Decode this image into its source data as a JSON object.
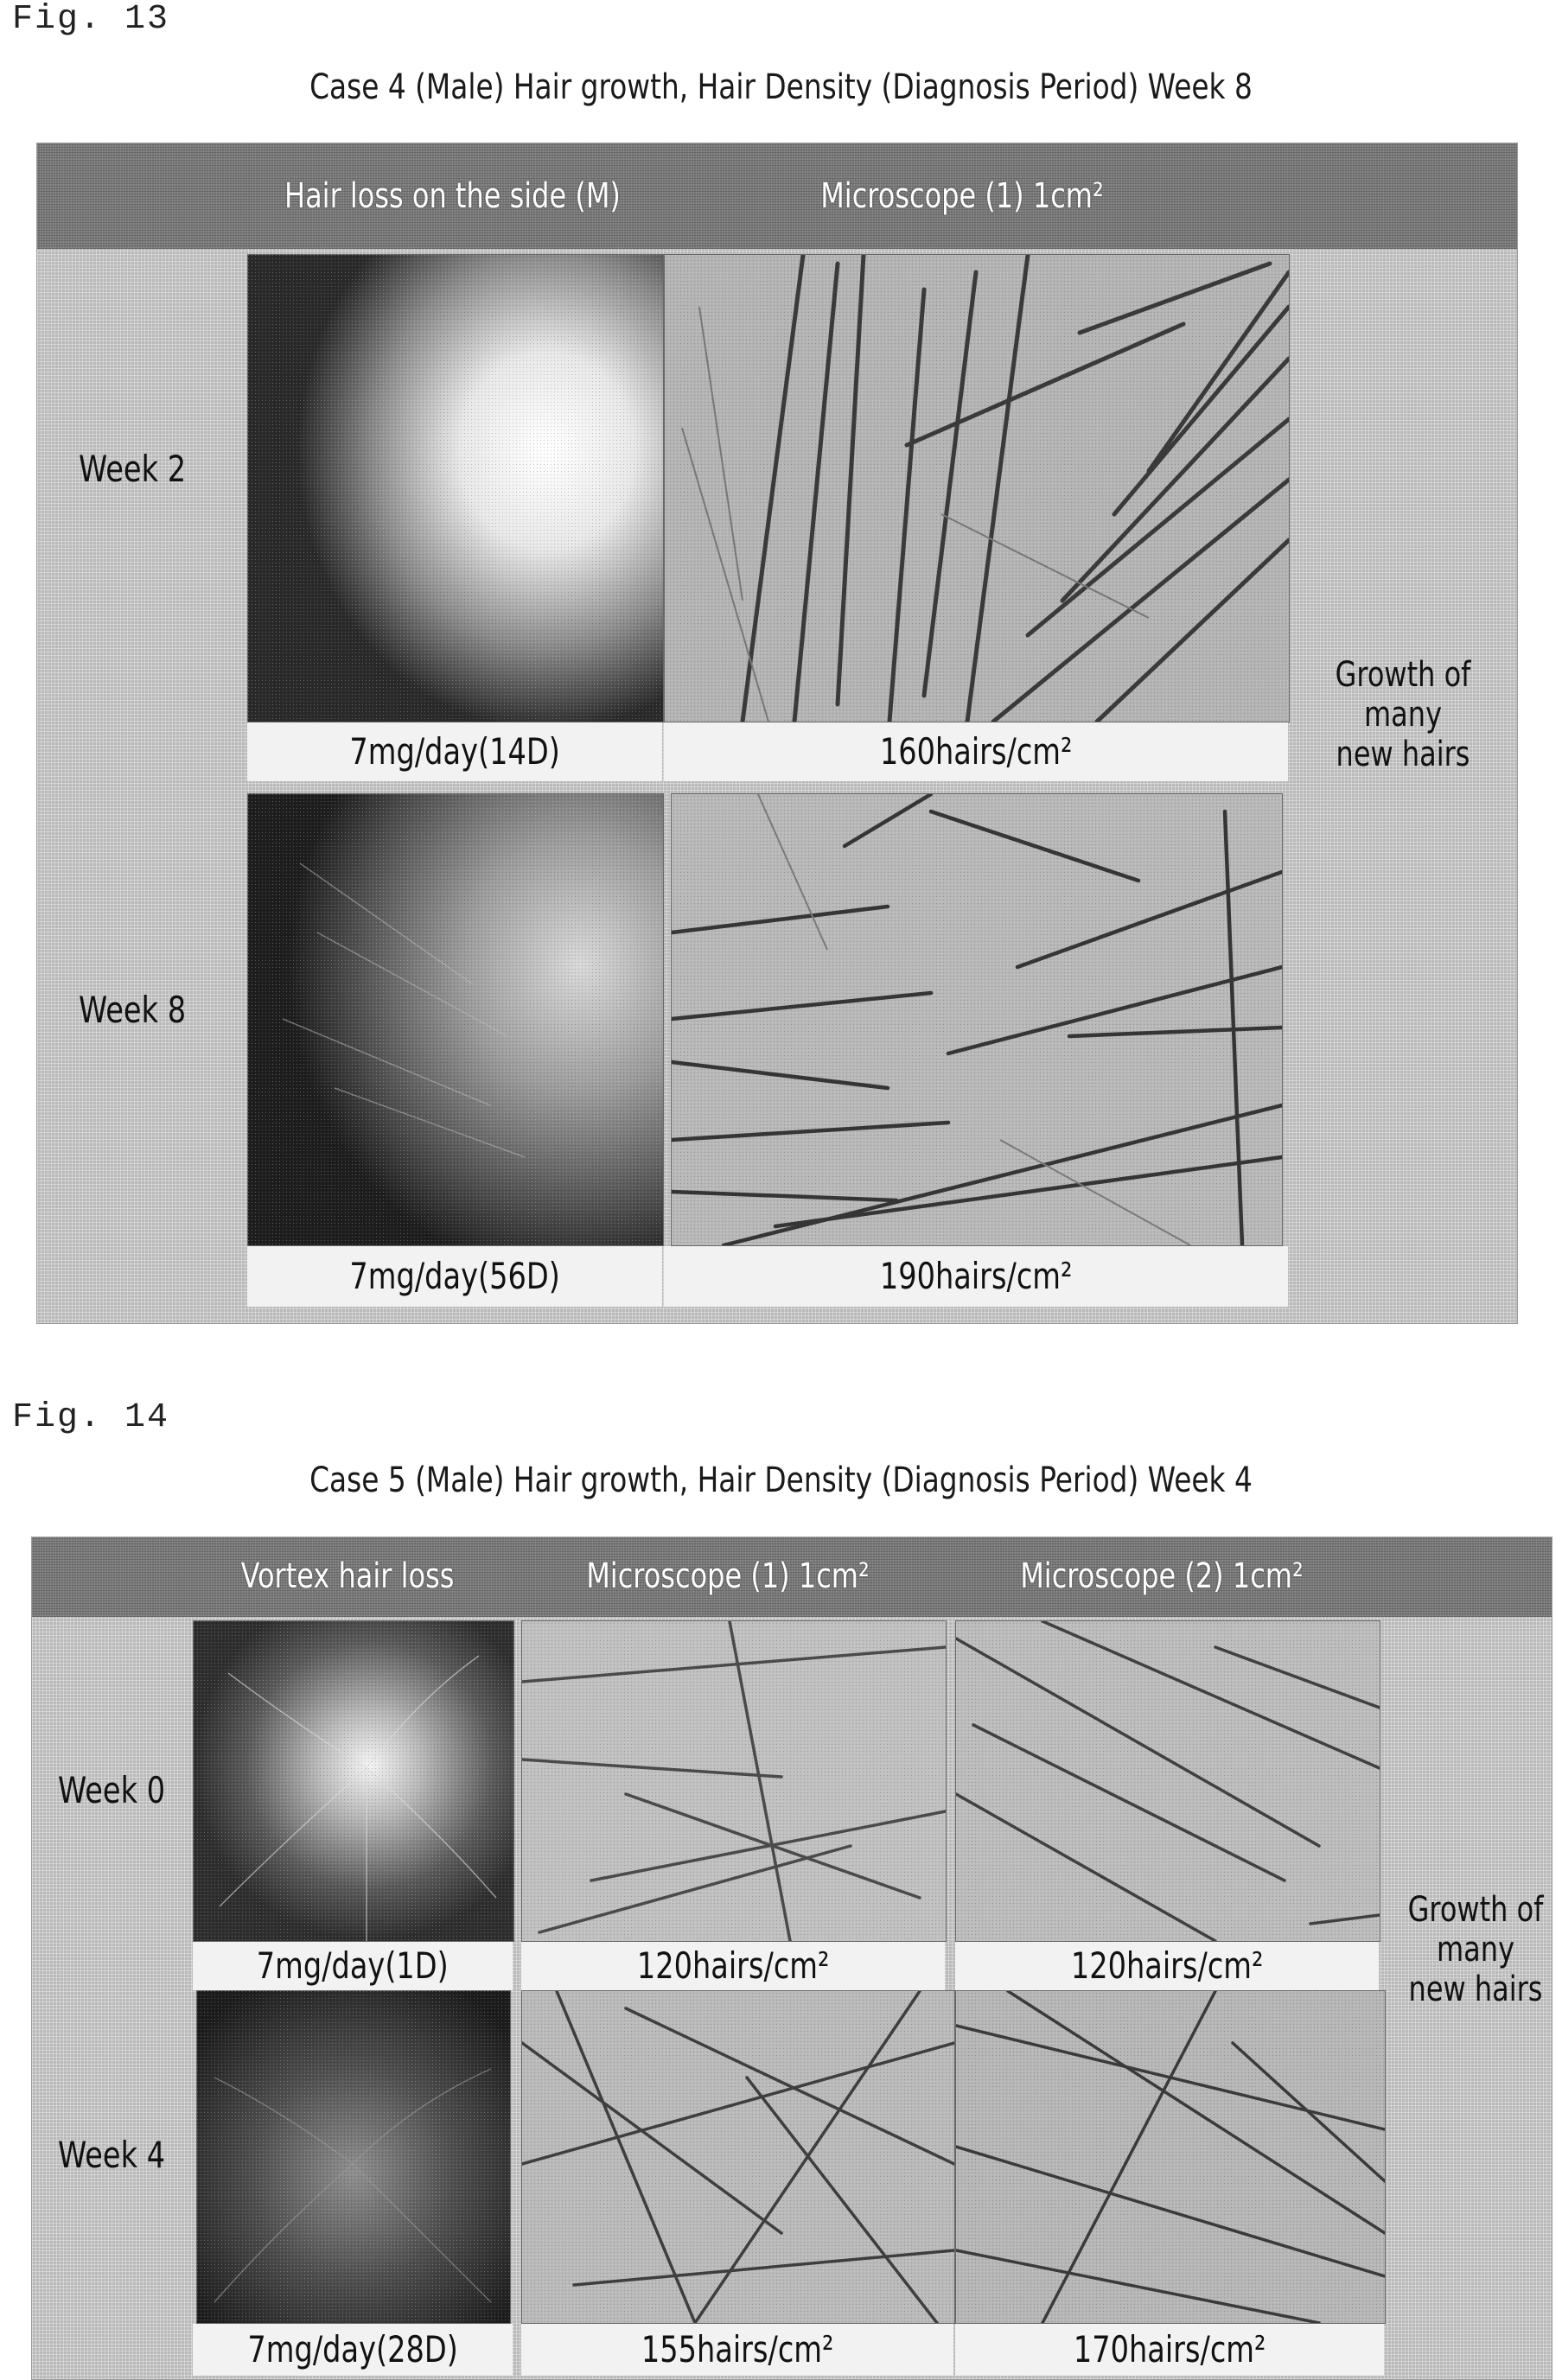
{
  "fig13": {
    "label": "Fig. 13",
    "title": "Case 4 (Male) Hair growth, Hair Density (Diagnosis Period) Week 8",
    "columns": [
      "Hair loss on the side (M)",
      "Microscope (1) 1cm²"
    ],
    "rows": [
      {
        "label": "Week 2",
        "scalp_caption": "7mg/day(14D)",
        "micro_caption": "160hairs/cm²"
      },
      {
        "label": "Week 8",
        "scalp_caption": "7mg/day(56D)",
        "micro_caption": "190hairs/cm²"
      }
    ],
    "note": [
      "Growth of",
      "many",
      "new hairs"
    ]
  },
  "fig14": {
    "label": "Fig. 14",
    "title": "Case 5 (Male) Hair growth, Hair Density (Diagnosis Period) Week 4",
    "columns": [
      "Vortex hair loss",
      "Microscope (1) 1cm²",
      "Microscope (2) 1cm²"
    ],
    "rows": [
      {
        "label": "Week 0",
        "scalp_caption": "7mg/day(1D)",
        "micro1_caption": "120hairs/cm²",
        "micro2_caption": "120hairs/cm²"
      },
      {
        "label": "Week 4",
        "scalp_caption": "7mg/day(28D)",
        "micro1_caption": "155hairs/cm²",
        "micro2_caption": "170hairs/cm²"
      }
    ],
    "note": [
      "Growth of",
      "many",
      "new hairs"
    ]
  }
}
